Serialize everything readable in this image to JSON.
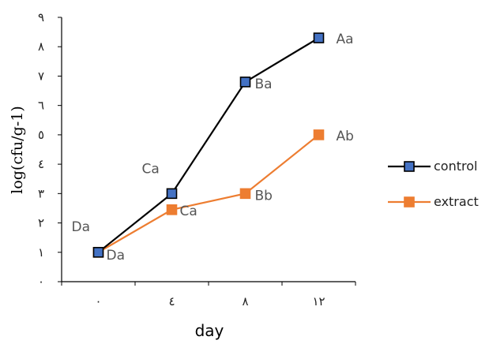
{
  "chart_data": {
    "type": "line",
    "x": [
      "٠",
      "٤",
      "٨",
      "١٢"
    ],
    "xlabel": "day",
    "ylabel": "log(cfu/g-1)",
    "ylim": [
      0,
      9
    ],
    "yticks": [
      "٠",
      "١",
      "٢",
      "٣",
      "٤",
      "٥",
      "٦",
      "٧",
      "٨",
      "٩"
    ],
    "grid": false,
    "legend_position": "right",
    "series": [
      {
        "name": "control",
        "values": [
          1,
          3,
          6.8,
          8.3
        ],
        "labels": [
          "Da",
          "Ca",
          "Ba",
          "Aa"
        ],
        "color": "#000000",
        "marker_color": "#4472C4",
        "marker": "square"
      },
      {
        "name": "extract",
        "values": [
          1,
          2.45,
          3,
          5
        ],
        "labels": [
          "Da",
          "Ca",
          "Bb",
          "Ab"
        ],
        "color": "#ED7D31",
        "marker_color": "#ED7D31",
        "marker": "square"
      }
    ]
  }
}
